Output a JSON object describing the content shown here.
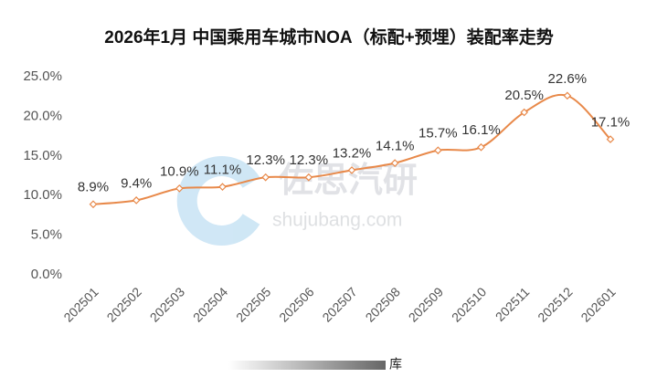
{
  "chart_data": {
    "type": "line",
    "title": "2026年1月 中国乘用车城市NOA（标配+预埋）装配率走势",
    "categories": [
      "202501",
      "202502",
      "202503",
      "202504",
      "202505",
      "202506",
      "202507",
      "202508",
      "202509",
      "202510",
      "202511",
      "202512",
      "202601"
    ],
    "values": [
      8.9,
      9.4,
      10.9,
      11.1,
      12.3,
      12.3,
      13.2,
      14.1,
      15.7,
      16.1,
      20.5,
      22.6,
      17.1
    ],
    "value_labels": [
      "8.9%",
      "9.4%",
      "10.9%",
      "11.1%",
      "12.3%",
      "12.3%",
      "13.2%",
      "14.1%",
      "15.7%",
      "16.1%",
      "20.5%",
      "22.6%",
      "17.1%"
    ],
    "color": "#e8894a",
    "smooth": true,
    "ylim": [
      0,
      25
    ],
    "yticks": [
      {
        "value": 0,
        "label": "0.0%"
      },
      {
        "value": 5,
        "label": "5.0%"
      },
      {
        "value": 10,
        "label": "10.0%"
      },
      {
        "value": 15,
        "label": "15.0%"
      },
      {
        "value": 20,
        "label": "20.0%"
      },
      {
        "value": 25,
        "label": "25.0%"
      }
    ],
    "grid": false,
    "watermark": [
      "佐思汽研",
      "shujubang.com"
    ],
    "footer_text": "库"
  }
}
